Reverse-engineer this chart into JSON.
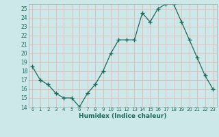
{
  "x": [
    0,
    1,
    2,
    3,
    4,
    5,
    6,
    7,
    8,
    9,
    10,
    11,
    12,
    13,
    14,
    15,
    16,
    17,
    18,
    19,
    20,
    21,
    22,
    23
  ],
  "y": [
    18.5,
    17.0,
    16.5,
    15.5,
    15.0,
    15.0,
    14.0,
    15.5,
    16.5,
    18.0,
    20.0,
    21.5,
    21.5,
    21.5,
    24.5,
    23.5,
    25.0,
    25.5,
    25.5,
    23.5,
    21.5,
    19.5,
    17.5,
    16.0
  ],
  "xlim": [
    -0.5,
    23.5
  ],
  "ylim": [
    14,
    25.5
  ],
  "yticks": [
    14,
    15,
    16,
    17,
    18,
    19,
    20,
    21,
    22,
    23,
    24,
    25
  ],
  "xtick_labels": [
    "0",
    "1",
    "2",
    "3",
    "4",
    "5",
    "6",
    "7",
    "8",
    "9",
    "10",
    "11",
    "12",
    "13",
    "14",
    "15",
    "16",
    "17",
    "18",
    "19",
    "20",
    "21",
    "22",
    "23"
  ],
  "xlabel": "Humidex (Indice chaleur)",
  "line_color": "#1a6b5a",
  "marker": "+",
  "marker_size": 4,
  "bg_color": "#cce8e8",
  "grid_color": "#e8b8b8",
  "title": ""
}
